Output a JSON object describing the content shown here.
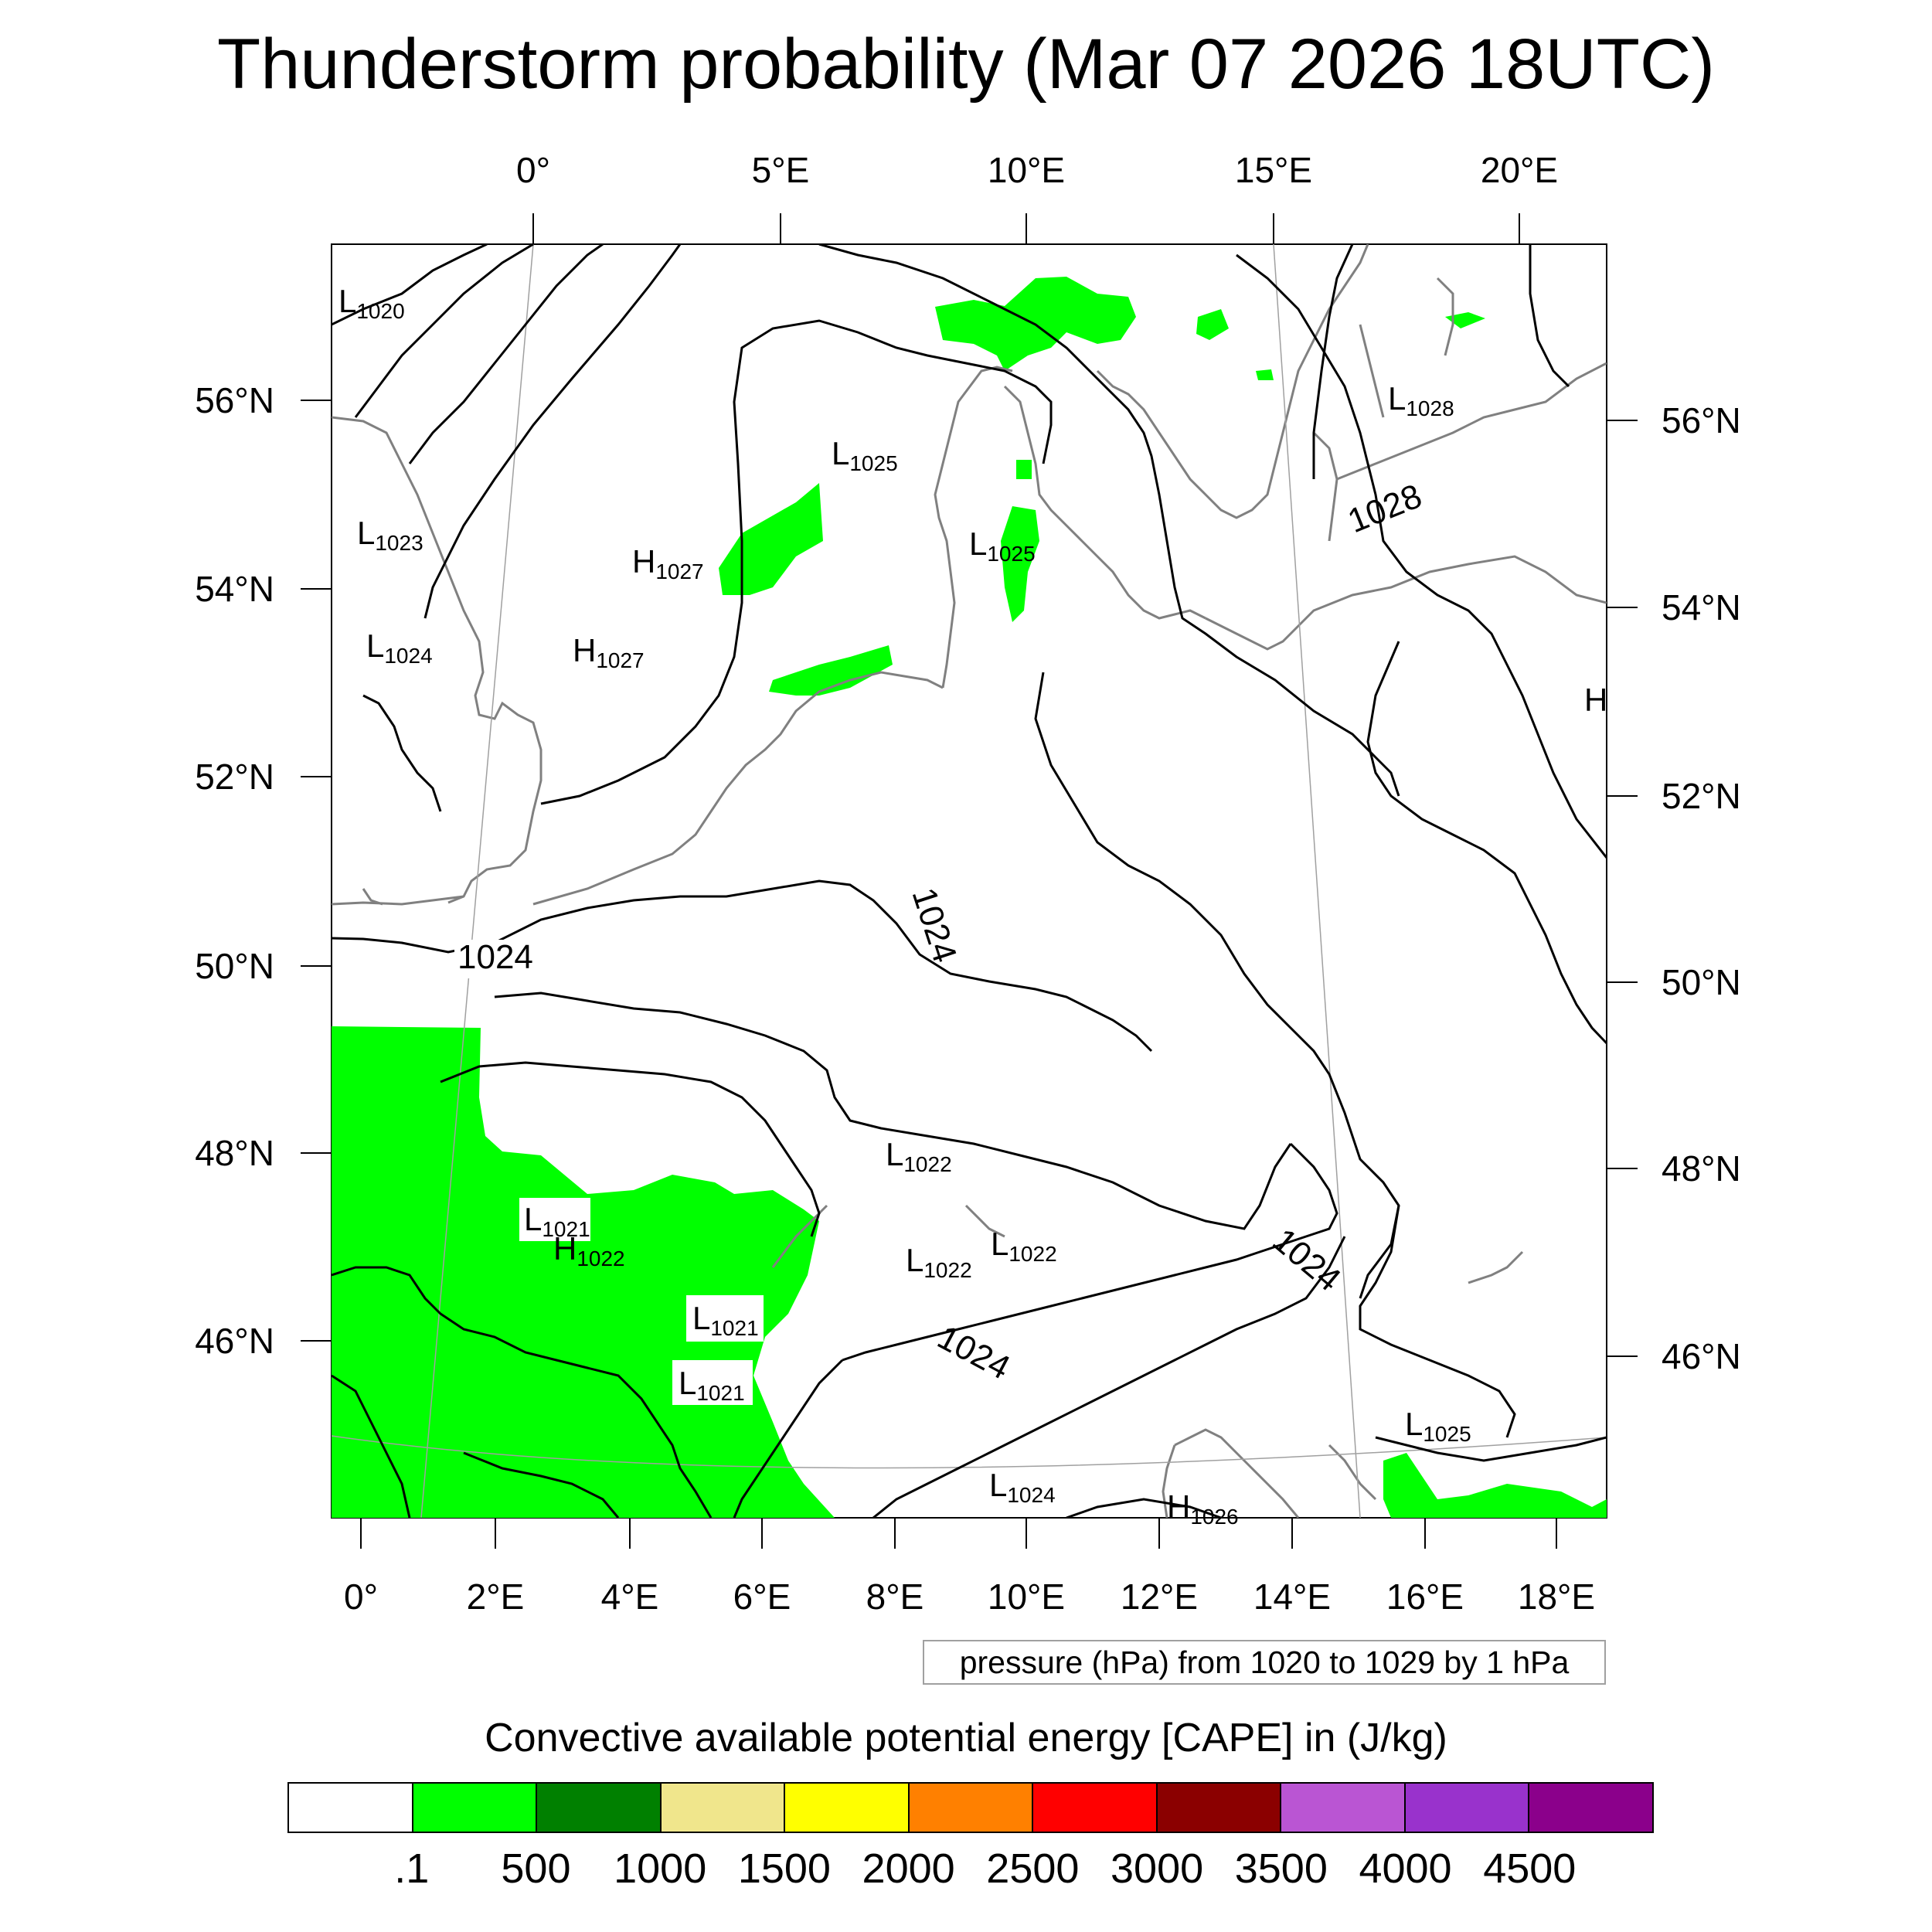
{
  "title": "Thunderstorm probability (Mar 07 2026 18UTC)",
  "top_axis_labels": [
    "0°",
    "5°E",
    "10°E",
    "15°E",
    "20°E"
  ],
  "bottom_axis_labels": [
    "0°",
    "2°E",
    "4°E",
    "6°E",
    "8°E",
    "10°E",
    "12°E",
    "14°E",
    "16°E",
    "18°E"
  ],
  "left_axis_labels": [
    "56°N",
    "54°N",
    "52°N",
    "50°N",
    "48°N",
    "46°N"
  ],
  "right_axis_labels": [
    "56°N",
    "54°N",
    "52°N",
    "50°N",
    "48°N",
    "46°N"
  ],
  "pressure_centers": [
    {
      "type": "L",
      "value": "1020"
    },
    {
      "type": "L",
      "value": "1023"
    },
    {
      "type": "L",
      "value": "1024"
    },
    {
      "type": "H",
      "value": "1027"
    },
    {
      "type": "H",
      "value": "1027"
    },
    {
      "type": "L",
      "value": "1025"
    },
    {
      "type": "L",
      "value": "1025"
    },
    {
      "type": "L",
      "value": "1028"
    },
    {
      "type": "H",
      "value": ""
    },
    {
      "type": "L",
      "value": "1022"
    },
    {
      "type": "L",
      "value": "1021"
    },
    {
      "type": "H",
      "value": "1022"
    },
    {
      "type": "L",
      "value": "1022"
    },
    {
      "type": "L",
      "value": "1022"
    },
    {
      "type": "L",
      "value": "1021"
    },
    {
      "type": "L",
      "value": "1021"
    },
    {
      "type": "L",
      "value": "1025"
    },
    {
      "type": "L",
      "value": "1024"
    },
    {
      "type": "H",
      "value": "1026"
    }
  ],
  "contour_labels": [
    "1024",
    "1024",
    "1028",
    "1024",
    "1024"
  ],
  "pressure_note": "pressure (hPa) from 1020 to 1029 by 1 hPa",
  "cape_title": "Convective available potential energy [CAPE] in (J/kg)",
  "colorbar": {
    "colors": [
      "#ffffff",
      "#00ff00",
      "#008000",
      "#f0e68c",
      "#ffff00",
      "#ff8000",
      "#ff0000",
      "#8b0000",
      "#ba55d3",
      "#9932cc",
      "#8b008b"
    ],
    "labels": [
      ".1",
      "500",
      "1000",
      "1500",
      "2000",
      "2500",
      "3000",
      "3500",
      "4000",
      "4500"
    ]
  },
  "colors": {
    "cape_fill": "#00ff00",
    "coastline": "#808080",
    "isobar": "#000000"
  }
}
